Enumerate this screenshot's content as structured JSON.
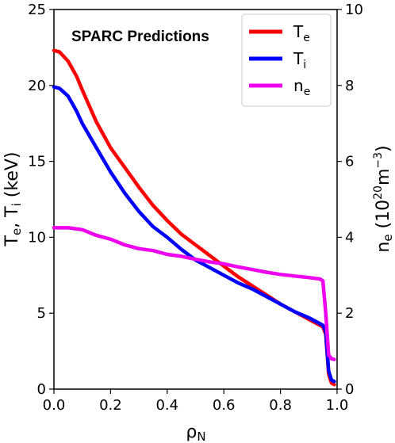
{
  "chart_data": {
    "type": "line",
    "title": "",
    "annotation": "SPARC  Predictions",
    "xlabel": "ρ",
    "xlabel_sub": "N",
    "ylabel_left": "T",
    "ylabel_left_sub1": "e",
    "ylabel_left_mid": ", T",
    "ylabel_left_sub2": "i",
    "ylabel_left_tail": " (keV)",
    "ylabel_right": "n",
    "ylabel_right_sub": "e",
    "ylabel_right_mid": " (10",
    "ylabel_right_sup1": "20",
    "ylabel_right_unit": "m",
    "ylabel_right_sup2": "−3",
    "ylabel_right_tail": ")",
    "xlim": [
      0,
      1
    ],
    "ylim_left": [
      0,
      25
    ],
    "ylim_right": [
      0,
      10
    ],
    "x_ticks": [
      "0.0",
      "0.2",
      "0.4",
      "0.6",
      "0.8",
      "1.0"
    ],
    "y_ticks_left": [
      "0",
      "5",
      "10",
      "15",
      "20",
      "25"
    ],
    "y_ticks_right": [
      "0",
      "2",
      "4",
      "6",
      "8",
      "10"
    ],
    "grid": false,
    "legend_position": "top-right",
    "series": [
      {
        "name": "T",
        "name_sub": "e",
        "axis": "left",
        "color": "#ff0000",
        "points": [
          [
            0.0,
            22.3
          ],
          [
            0.02,
            22.2
          ],
          [
            0.05,
            21.6
          ],
          [
            0.08,
            20.6
          ],
          [
            0.1,
            19.7
          ],
          [
            0.15,
            17.6
          ],
          [
            0.2,
            15.9
          ],
          [
            0.25,
            14.6
          ],
          [
            0.3,
            13.3
          ],
          [
            0.35,
            12.1
          ],
          [
            0.4,
            11.1
          ],
          [
            0.45,
            10.2
          ],
          [
            0.5,
            9.5
          ],
          [
            0.55,
            8.8
          ],
          [
            0.6,
            8.1
          ],
          [
            0.65,
            7.4
          ],
          [
            0.7,
            6.8
          ],
          [
            0.75,
            6.2
          ],
          [
            0.8,
            5.6
          ],
          [
            0.85,
            5.1
          ],
          [
            0.9,
            4.6
          ],
          [
            0.95,
            4.1
          ],
          [
            0.96,
            3.6
          ],
          [
            0.97,
            1.0
          ],
          [
            0.98,
            0.4
          ],
          [
            0.99,
            0.3
          ]
        ]
      },
      {
        "name": "T",
        "name_sub": "i",
        "axis": "left",
        "color": "#0000ff",
        "points": [
          [
            0.0,
            19.9
          ],
          [
            0.02,
            19.8
          ],
          [
            0.05,
            19.3
          ],
          [
            0.08,
            18.3
          ],
          [
            0.1,
            17.5
          ],
          [
            0.15,
            15.9
          ],
          [
            0.2,
            14.3
          ],
          [
            0.25,
            12.9
          ],
          [
            0.3,
            11.7
          ],
          [
            0.35,
            10.7
          ],
          [
            0.4,
            10.0
          ],
          [
            0.45,
            9.2
          ],
          [
            0.5,
            8.5
          ],
          [
            0.55,
            8.0
          ],
          [
            0.6,
            7.5
          ],
          [
            0.65,
            7.0
          ],
          [
            0.7,
            6.6
          ],
          [
            0.75,
            6.1
          ],
          [
            0.8,
            5.6
          ],
          [
            0.85,
            5.1
          ],
          [
            0.9,
            4.7
          ],
          [
            0.95,
            4.2
          ],
          [
            0.96,
            3.8
          ],
          [
            0.97,
            1.2
          ],
          [
            0.98,
            0.6
          ],
          [
            0.99,
            0.5
          ]
        ]
      },
      {
        "name": "n",
        "name_sub": "e",
        "axis": "right",
        "color": "#ee00ee",
        "points": [
          [
            0.0,
            4.25
          ],
          [
            0.05,
            4.25
          ],
          [
            0.1,
            4.2
          ],
          [
            0.15,
            4.05
          ],
          [
            0.2,
            3.95
          ],
          [
            0.25,
            3.8
          ],
          [
            0.3,
            3.7
          ],
          [
            0.35,
            3.65
          ],
          [
            0.4,
            3.55
          ],
          [
            0.45,
            3.5
          ],
          [
            0.5,
            3.42
          ],
          [
            0.55,
            3.35
          ],
          [
            0.6,
            3.3
          ],
          [
            0.65,
            3.22
          ],
          [
            0.7,
            3.15
          ],
          [
            0.75,
            3.08
          ],
          [
            0.8,
            3.02
          ],
          [
            0.85,
            2.98
          ],
          [
            0.9,
            2.94
          ],
          [
            0.94,
            2.9
          ],
          [
            0.95,
            2.85
          ],
          [
            0.96,
            2.0
          ],
          [
            0.97,
            0.9
          ],
          [
            0.98,
            0.8
          ],
          [
            0.99,
            0.78
          ]
        ]
      }
    ]
  }
}
